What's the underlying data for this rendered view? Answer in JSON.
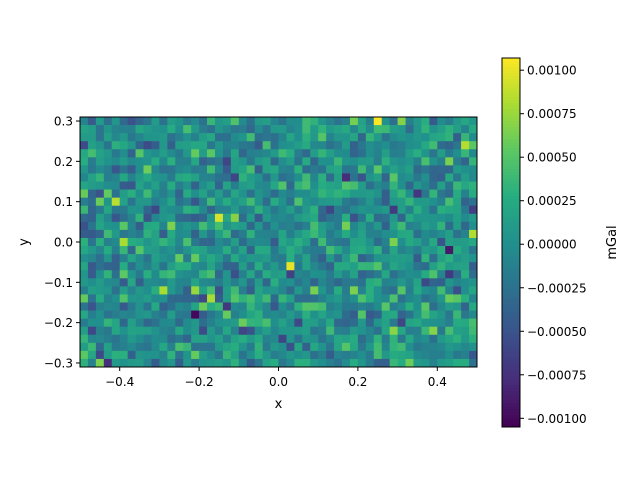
{
  "chart_data": {
    "type": "heatmap",
    "xlabel": "x",
    "ylabel": "y",
    "xlim": [
      -0.5,
      0.5
    ],
    "ylim": [
      0.31,
      -0.31
    ],
    "y_axis_inverted": true,
    "grid": false,
    "colormap": "viridis",
    "colorbar": {
      "label": "mGal",
      "vmin": -0.00105,
      "vmax": 0.00107,
      "ticks": [
        -0.001,
        -0.00075,
        -0.0005,
        -0.00025,
        0.0,
        0.00025,
        0.0005,
        0.00075,
        0.001
      ],
      "tick_labels": [
        "−0.00100",
        "−0.00075",
        "−0.00050",
        "−0.00025",
        "0.00000",
        "0.00025",
        "0.00050",
        "0.00075",
        "0.00100"
      ]
    },
    "x_ticks": [
      -0.4,
      -0.2,
      0.0,
      0.2,
      0.4
    ],
    "x_tick_labels": [
      "−0.4",
      "−0.2",
      "0.0",
      "0.2",
      "0.4"
    ],
    "y_ticks": [
      -0.3,
      -0.2,
      -0.1,
      0.0,
      0.1,
      0.2,
      0.3
    ],
    "y_tick_labels": [
      "−0.3",
      "−0.2",
      "−0.1",
      "0.0",
      "0.1",
      "0.2",
      "0.3"
    ],
    "grid_shape": {
      "columns": 50,
      "rows": 31
    },
    "value_distribution": "random noise, mean approximately 0, std approximately 0.00025 mGal",
    "notable_cells": [
      {
        "x": 0.25,
        "y": 0.3,
        "value": 0.00107
      },
      {
        "x": 0.03,
        "y": -0.06,
        "value": 0.001
      },
      {
        "x": -0.15,
        "y": 0.07,
        "value": 0.00095
      },
      {
        "x": -0.21,
        "y": -0.17,
        "value": -0.001
      },
      {
        "x": -0.41,
        "y": 0.11,
        "value": 0.00085
      },
      {
        "x": -0.39,
        "y": 0.01,
        "value": 0.0008
      },
      {
        "x": -0.29,
        "y": -0.12,
        "value": 0.0008
      },
      {
        "x": 0.43,
        "y": -0.03,
        "value": -0.0009
      }
    ]
  }
}
